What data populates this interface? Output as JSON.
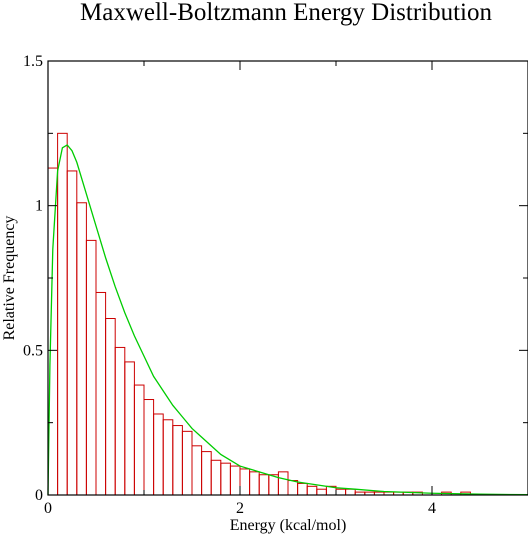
{
  "chart_data": {
    "type": "bar",
    "title": "Maxwell-Boltzmann Energy Distribution",
    "xlabel": "Energy (kcal/mol)",
    "ylabel": "Relative Frequency",
    "xlim": [
      0,
      5
    ],
    "ylim": [
      0,
      1.5
    ],
    "x_ticks": [
      0,
      2,
      4
    ],
    "x_tick_labels": [
      "0",
      "2",
      "4"
    ],
    "y_ticks": [
      0,
      0.5,
      1,
      1.5
    ],
    "y_tick_labels": [
      "0",
      "0.5",
      "1",
      "1.5"
    ],
    "grid": false,
    "histogram": {
      "bin_width": 0.1,
      "bin_start": 0,
      "color": "#cc0000",
      "values": [
        1.13,
        1.25,
        1.12,
        1.01,
        0.88,
        0.7,
        0.61,
        0.51,
        0.46,
        0.38,
        0.33,
        0.28,
        0.26,
        0.24,
        0.22,
        0.17,
        0.15,
        0.12,
        0.11,
        0.1,
        0.09,
        0.08,
        0.07,
        0.07,
        0.08,
        0.05,
        0.04,
        0.03,
        0.02,
        0.03,
        0.02,
        0.02,
        0.01,
        0.01,
        0.01,
        0.01,
        0.01,
        0.01,
        0.01,
        0.0,
        0.0,
        0.01,
        0.0,
        0.01,
        0.0,
        0.0,
        0.0,
        0.0,
        0.0,
        0.0
      ]
    },
    "curve": {
      "color": "#00cc00",
      "x": [
        0,
        0.02,
        0.05,
        0.1,
        0.15,
        0.2,
        0.25,
        0.3,
        0.4,
        0.5,
        0.6,
        0.7,
        0.8,
        0.9,
        1.0,
        1.1,
        1.2,
        1.3,
        1.4,
        1.5,
        1.6,
        1.8,
        2.0,
        2.2,
        2.4,
        2.6,
        2.8,
        3.0,
        3.2,
        3.5,
        4.0,
        4.5,
        5.0
      ],
      "y": [
        0,
        0.45,
        0.85,
        1.12,
        1.2,
        1.21,
        1.19,
        1.15,
        1.04,
        0.93,
        0.82,
        0.72,
        0.63,
        0.55,
        0.48,
        0.41,
        0.36,
        0.31,
        0.27,
        0.23,
        0.2,
        0.14,
        0.1,
        0.08,
        0.06,
        0.045,
        0.035,
        0.025,
        0.02,
        0.012,
        0.006,
        0.003,
        0.001
      ]
    }
  }
}
